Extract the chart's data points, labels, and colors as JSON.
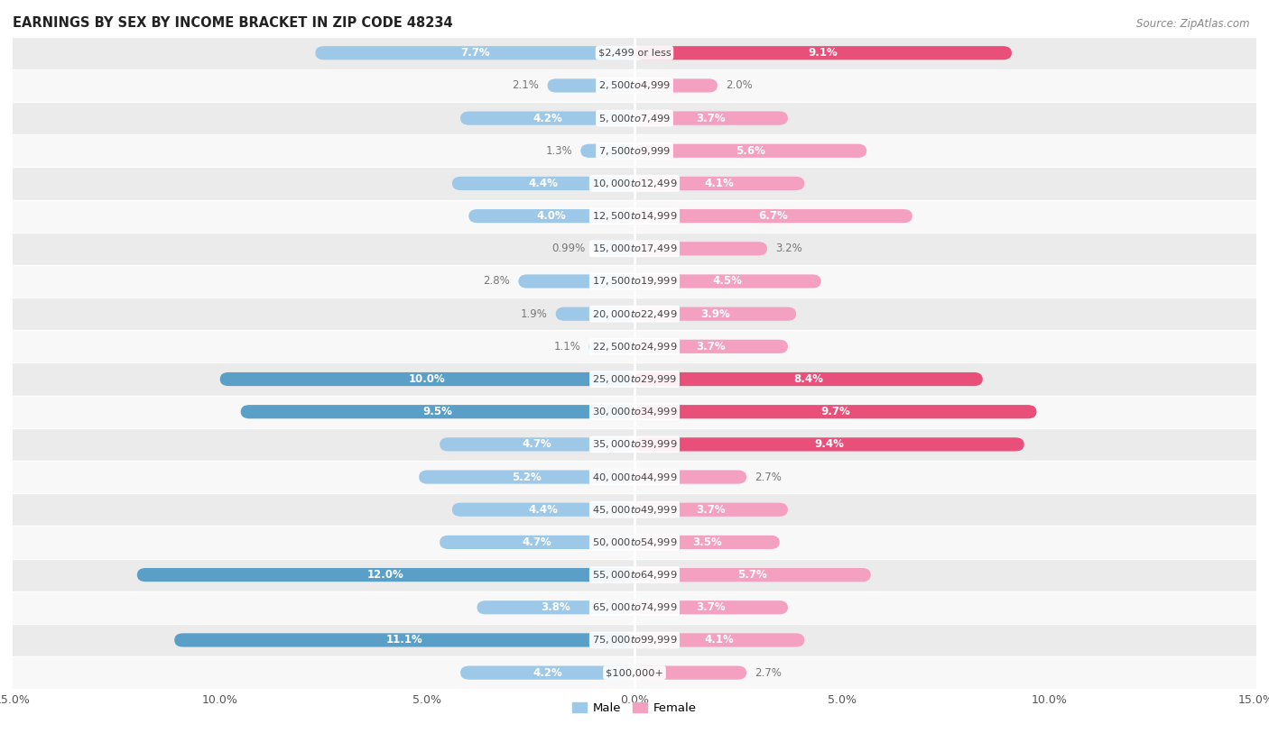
{
  "title": "EARNINGS BY SEX BY INCOME BRACKET IN ZIP CODE 48234",
  "source": "Source: ZipAtlas.com",
  "categories": [
    "$2,499 or less",
    "$2,500 to $4,999",
    "$5,000 to $7,499",
    "$7,500 to $9,999",
    "$10,000 to $12,499",
    "$12,500 to $14,999",
    "$15,000 to $17,499",
    "$17,500 to $19,999",
    "$20,000 to $22,499",
    "$22,500 to $24,999",
    "$25,000 to $29,999",
    "$30,000 to $34,999",
    "$35,000 to $39,999",
    "$40,000 to $44,999",
    "$45,000 to $49,999",
    "$50,000 to $54,999",
    "$55,000 to $64,999",
    "$65,000 to $74,999",
    "$75,000 to $99,999",
    "$100,000+"
  ],
  "male_values": [
    7.7,
    2.1,
    4.2,
    1.3,
    4.4,
    4.0,
    0.99,
    2.8,
    1.9,
    1.1,
    10.0,
    9.5,
    4.7,
    5.2,
    4.4,
    4.7,
    12.0,
    3.8,
    11.1,
    4.2
  ],
  "female_values": [
    9.1,
    2.0,
    3.7,
    5.6,
    4.1,
    6.7,
    3.2,
    4.5,
    3.9,
    3.7,
    8.4,
    9.7,
    9.4,
    2.7,
    3.7,
    3.5,
    5.7,
    3.7,
    4.1,
    2.7
  ],
  "male_color_light": "#9ec8e8",
  "male_color_dark": "#5a9fc8",
  "female_color_light": "#f4a0c0",
  "female_color_dark": "#e8507a",
  "male_dark_threshold": 9.0,
  "female_dark_threshold": 8.0,
  "bg_color": "#f5f5f5",
  "row_color_odd": "#ebebeb",
  "row_color_even": "#f8f8f8",
  "xlim": 15.0,
  "bar_height": 0.42,
  "inside_label_threshold_male": 3.5,
  "inside_label_threshold_female": 3.5,
  "label_fontsize": 8.5,
  "cat_fontsize": 8.2,
  "title_fontsize": 10.5,
  "source_fontsize": 8.5,
  "axis_tick_fontsize": 9.0
}
